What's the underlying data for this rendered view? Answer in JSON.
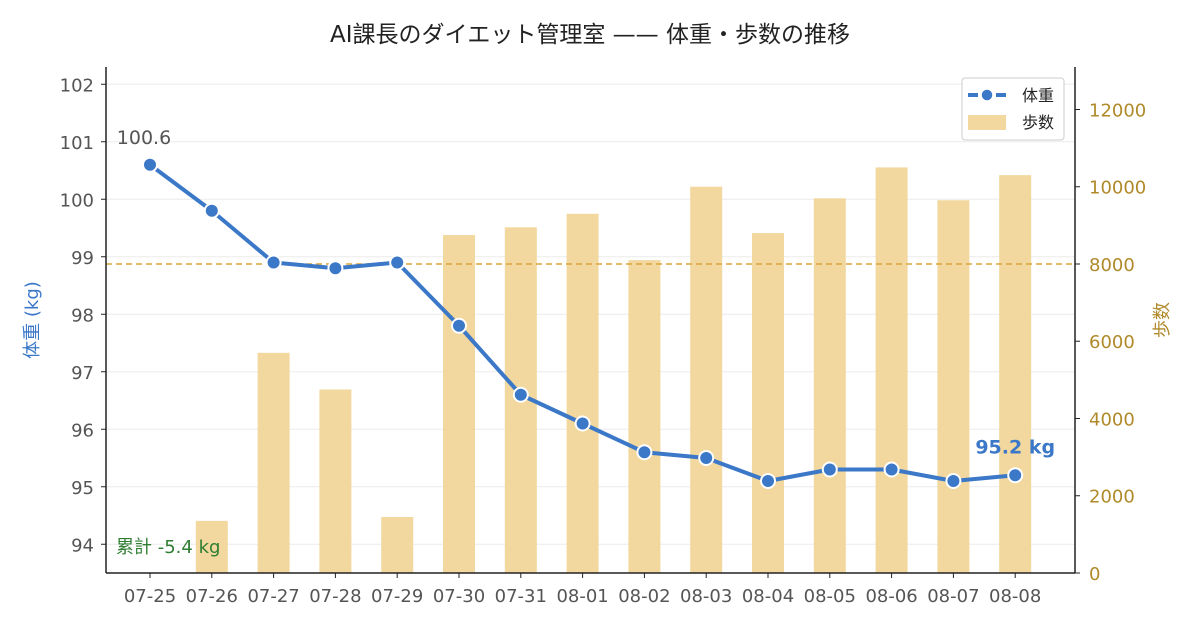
{
  "chart_data": {
    "type": "bar+line",
    "title": "AI課長のダイエット管理室 —— 体重・歩数の推移",
    "categories": [
      "07-25",
      "07-26",
      "07-27",
      "07-28",
      "07-29",
      "07-30",
      "07-31",
      "08-01",
      "08-02",
      "08-03",
      "08-04",
      "08-05",
      "08-06",
      "08-07",
      "08-08"
    ],
    "weight": {
      "name": "体重",
      "unit": "kg",
      "values": [
        100.6,
        99.8,
        98.9,
        98.8,
        98.9,
        97.8,
        96.6,
        96.1,
        95.6,
        95.5,
        95.1,
        95.3,
        95.3,
        95.1,
        95.2
      ],
      "color": "#3b78c8"
    },
    "steps": {
      "name": "歩数",
      "values": [
        0,
        1350,
        5700,
        4750,
        1450,
        8750,
        8950,
        9300,
        8100,
        10000,
        8800,
        9700,
        10500,
        9650,
        10300
      ],
      "color": "#f2d79e"
    },
    "y_left": {
      "label": "体重 (kg)",
      "min": 93.5,
      "max": 102.3,
      "ticks": [
        94,
        95,
        96,
        97,
        98,
        99,
        100,
        101,
        102
      ],
      "color": "#3b78c8"
    },
    "y_right": {
      "label": "歩数",
      "min": 0,
      "max": 13100,
      "ticks": [
        0,
        2000,
        4000,
        6000,
        8000,
        10000,
        12000
      ],
      "color": "#b08a2a"
    },
    "target_steps": 8000,
    "grid": true,
    "legend": {
      "position": "top-right",
      "items": [
        "体重",
        "歩数"
      ]
    },
    "annotations": {
      "start_label": "100.6",
      "end_label": "95.2 kg",
      "cumulative": "累計 -5.4 kg",
      "cumulative_color": "#2e7d32"
    }
  }
}
